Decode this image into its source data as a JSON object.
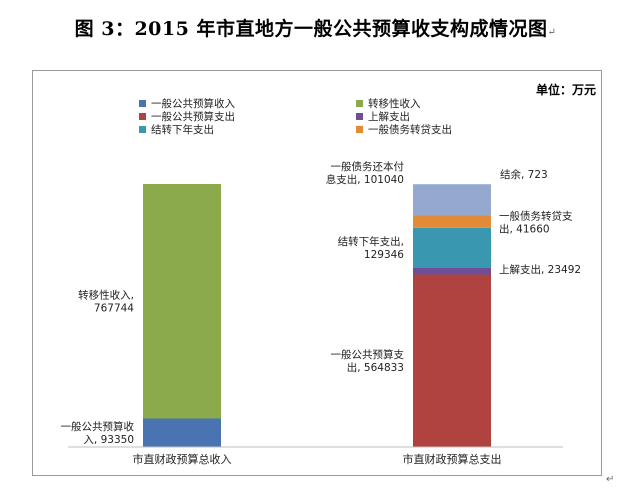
{
  "document": {
    "title": "图 3：2015 年市直地方一般公共预算收支构成情况图",
    "paragraph_mark": "↵"
  },
  "chart_data": {
    "type": "bar",
    "stacked": true,
    "unit_label": "单位：万元",
    "categories": [
      "市直财政预算总收入",
      "市直财政预算总支出"
    ],
    "series": [
      {
        "name": "一般公共预算收入",
        "color": "#4a74b1",
        "values": [
          93350,
          0
        ]
      },
      {
        "name": "转移性收入",
        "color": "#8aaa4c",
        "values": [
          767744,
          0
        ]
      },
      {
        "name": "一般公共预算支出",
        "color": "#b0433f",
        "values": [
          0,
          564833
        ]
      },
      {
        "name": "上解支出",
        "color": "#6e4f97",
        "values": [
          0,
          23492
        ]
      },
      {
        "name": "结转下年支出",
        "color": "#3a97b0",
        "values": [
          0,
          129346
        ]
      },
      {
        "name": "一般债务转贷支出",
        "color": "#e38a36",
        "values": [
          0,
          41660
        ]
      },
      {
        "name": "一般债务还本付息支出",
        "color": "#94a8d0",
        "values": [
          0,
          101040
        ]
      },
      {
        "name": "结余",
        "color": "#b7c9e3",
        "values": [
          0,
          723
        ]
      }
    ],
    "legend_order": [
      "一般公共预算收入",
      "转移性收入",
      "一般公共预算支出",
      "上解支出",
      "结转下年支出",
      "一般债务转贷支出"
    ],
    "legend_position": "top",
    "data_labels": [
      {
        "category": 0,
        "series": 0,
        "lines": [
          "一般公共预算收",
          "入, 93350"
        ],
        "side": "left"
      },
      {
        "category": 0,
        "series": 1,
        "lines": [
          "转移性收入,",
          "767744"
        ],
        "side": "left"
      },
      {
        "category": 1,
        "series": 2,
        "lines": [
          "一般公共预算支",
          "出, 564833"
        ],
        "side": "left"
      },
      {
        "category": 1,
        "series": 3,
        "lines": [
          "上解支出, 23492"
        ],
        "side": "right"
      },
      {
        "category": 1,
        "series": 4,
        "lines": [
          "结转下年支出,",
          "129346"
        ],
        "side": "left"
      },
      {
        "category": 1,
        "series": 5,
        "lines": [
          "一般债务转贷支",
          "出, 41660"
        ],
        "side": "right"
      },
      {
        "category": 1,
        "series": 6,
        "lines": [
          "一般债务还本付",
          "息支出, 101040"
        ],
        "side": "left"
      },
      {
        "category": 1,
        "series": 7,
        "lines": [
          "结余, 723"
        ],
        "side": "right-top"
      }
    ],
    "ylim": [
      0,
      861094
    ],
    "grid": false
  }
}
